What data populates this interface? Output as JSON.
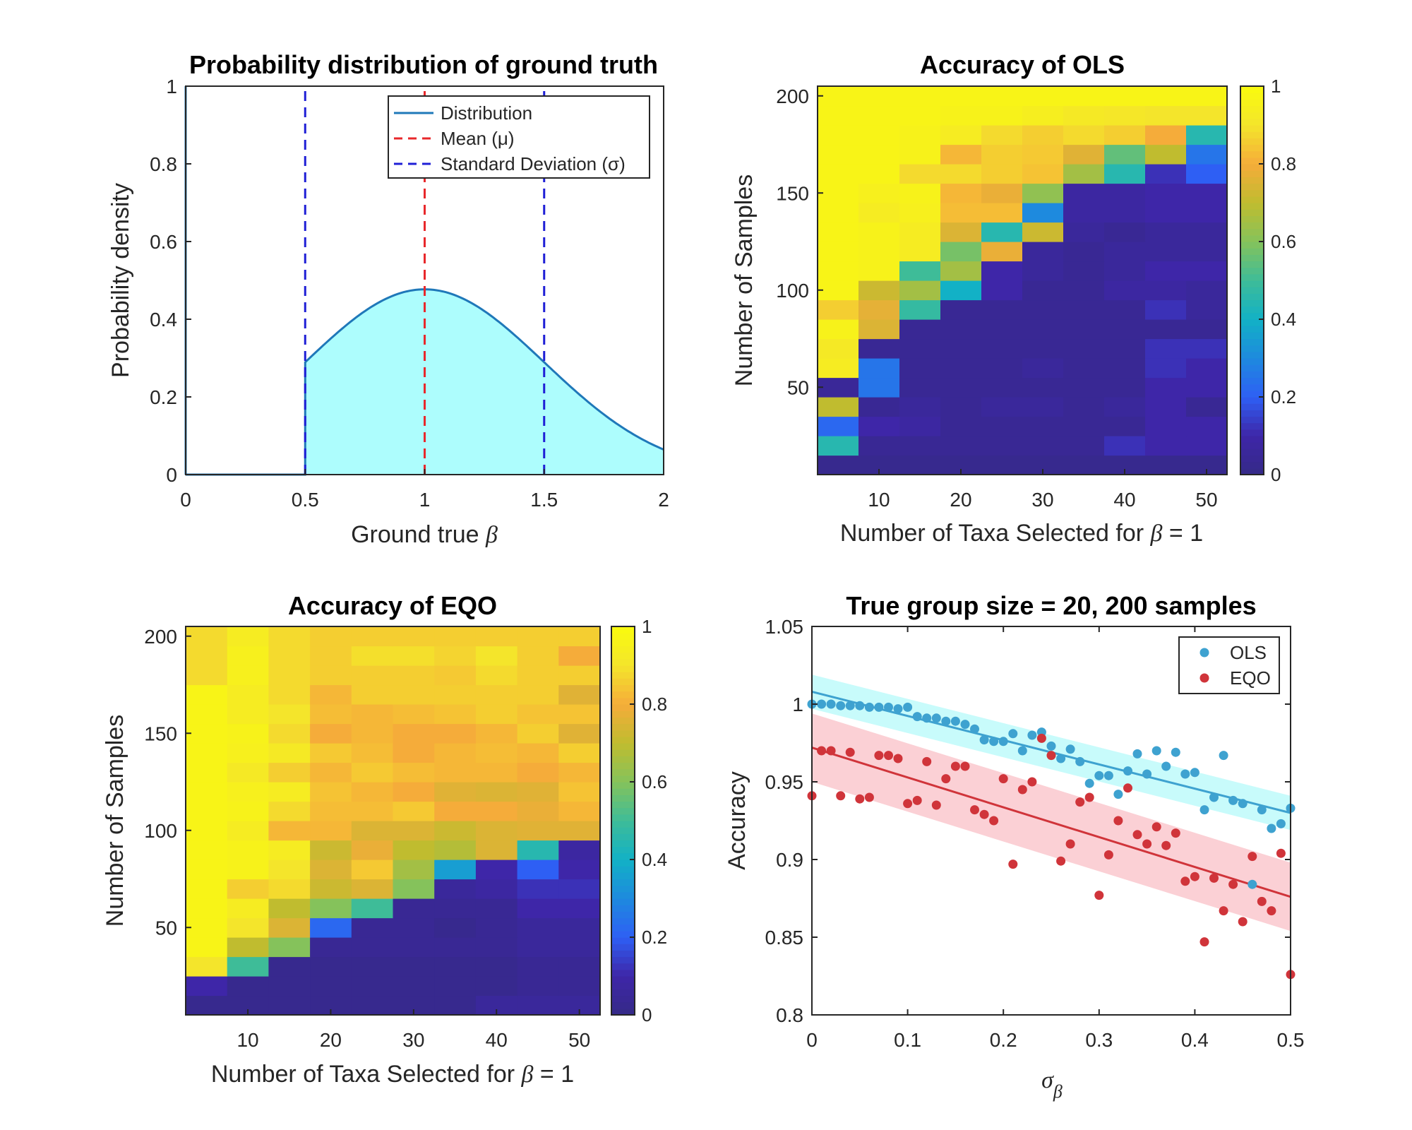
{
  "colormap": {
    "name": "parula",
    "stops": [
      "#352a87",
      "#3e26a8",
      "#2e5ff4",
      "#1e8ade",
      "#12b1c6",
      "#3ebc98",
      "#85c25b",
      "#c0bc2f",
      "#f5ac3a",
      "#f4e52b",
      "#f9fb0e"
    ]
  },
  "chart_data": [
    {
      "type": "area",
      "title": "Probability distribution of ground truth",
      "xlabel": "Ground true β",
      "ylabel": "Probability density",
      "xlim": [
        0,
        2
      ],
      "ylim": [
        0,
        1
      ],
      "xticks": [
        "0",
        "0.5",
        "1",
        "1.5",
        "2"
      ],
      "yticks": [
        "0",
        "0.2",
        "0.4",
        "0.6",
        "0.8",
        "1"
      ],
      "distribution": {
        "mean": 1,
        "sd": 0.5,
        "truncated_below": 0.5,
        "peak_density": 0.477
      },
      "mean_line": {
        "x": 1,
        "color": "#e8282b"
      },
      "sd_lines": {
        "x": [
          0.5,
          1.5
        ],
        "color": "#1f1fd6"
      },
      "curve_color": "#1f78b9",
      "fill_color": "#adfdfd",
      "legend": {
        "position": "top-right",
        "entries": [
          "Distribution",
          "Mean (μ)",
          "Standard Deviation (σ)"
        ]
      }
    },
    {
      "type": "heatmap",
      "title": "Accuracy of OLS",
      "xlabel": "Number of Taxa Selected for β = 1",
      "ylabel": "Number of Samples",
      "x": [
        5,
        10,
        15,
        20,
        25,
        30,
        35,
        40,
        45,
        50
      ],
      "y": [
        10,
        20,
        30,
        40,
        50,
        60,
        70,
        80,
        90,
        100,
        110,
        120,
        130,
        140,
        150,
        160,
        170,
        180,
        190,
        200
      ],
      "xticks": [
        "10",
        "20",
        "30",
        "40",
        "50"
      ],
      "yticks": [
        "50",
        "100",
        "150",
        "200"
      ],
      "colorbar": {
        "range": [
          0,
          1
        ],
        "ticks": [
          "0",
          "0.2",
          "0.4",
          "0.6",
          "0.8",
          "1"
        ]
      },
      "z": [
        [
          0.02,
          0.02,
          0.02,
          0.02,
          0.02,
          0.02,
          0.02,
          0.02,
          0.02,
          0.02
        ],
        [
          0.45,
          0.04,
          0.04,
          0.04,
          0.04,
          0.04,
          0.04,
          0.12,
          0.1,
          0.1
        ],
        [
          0.22,
          0.1,
          0.08,
          0.04,
          0.04,
          0.04,
          0.04,
          0.04,
          0.1,
          0.1
        ],
        [
          0.7,
          0.04,
          0.06,
          0.04,
          0.06,
          0.06,
          0.04,
          0.06,
          0.1,
          0.04
        ],
        [
          0.05,
          0.25,
          0.04,
          0.04,
          0.04,
          0.04,
          0.04,
          0.04,
          0.1,
          0.1
        ],
        [
          0.93,
          0.25,
          0.04,
          0.04,
          0.04,
          0.06,
          0.04,
          0.04,
          0.12,
          0.1
        ],
        [
          0.92,
          0.04,
          0.04,
          0.04,
          0.04,
          0.04,
          0.04,
          0.04,
          0.12,
          0.12
        ],
        [
          0.96,
          0.75,
          0.04,
          0.04,
          0.04,
          0.04,
          0.04,
          0.04,
          0.04,
          0.04
        ],
        [
          0.86,
          0.77,
          0.48,
          0.04,
          0.04,
          0.04,
          0.04,
          0.04,
          0.12,
          0.06
        ],
        [
          0.97,
          0.72,
          0.65,
          0.4,
          0.1,
          0.04,
          0.04,
          0.08,
          0.08,
          0.06
        ],
        [
          0.97,
          0.96,
          0.5,
          0.65,
          0.1,
          0.06,
          0.04,
          0.06,
          0.1,
          0.1
        ],
        [
          0.97,
          0.96,
          0.93,
          0.58,
          0.78,
          0.06,
          0.04,
          0.06,
          0.06,
          0.06
        ],
        [
          0.97,
          0.96,
          0.93,
          0.75,
          0.45,
          0.72,
          0.06,
          0.04,
          0.06,
          0.06
        ],
        [
          0.97,
          0.93,
          0.95,
          0.83,
          0.83,
          0.3,
          0.08,
          0.08,
          0.1,
          0.1
        ],
        [
          0.97,
          0.95,
          0.96,
          0.82,
          0.78,
          0.62,
          0.08,
          0.08,
          0.1,
          0.1
        ],
        [
          0.97,
          0.97,
          0.88,
          0.88,
          0.86,
          0.84,
          0.65,
          0.45,
          0.12,
          0.2
        ],
        [
          0.97,
          0.97,
          0.96,
          0.82,
          0.86,
          0.85,
          0.76,
          0.55,
          0.7,
          0.25
        ],
        [
          0.97,
          0.97,
          0.96,
          0.93,
          0.88,
          0.86,
          0.88,
          0.86,
          0.8,
          0.45
        ],
        [
          0.97,
          0.97,
          0.97,
          0.96,
          0.96,
          0.94,
          0.92,
          0.91,
          0.9,
          0.9
        ],
        [
          0.97,
          0.97,
          0.97,
          0.97,
          0.97,
          0.97,
          0.97,
          0.97,
          0.97,
          0.97
        ]
      ]
    },
    {
      "type": "heatmap",
      "title": "Accuracy of EQO",
      "xlabel": "Number of Taxa Selected for β = 1",
      "ylabel": "Number of Samples",
      "x": [
        5,
        10,
        15,
        20,
        25,
        30,
        35,
        40,
        45,
        50
      ],
      "y": [
        10,
        20,
        30,
        40,
        50,
        60,
        70,
        80,
        90,
        100,
        110,
        120,
        130,
        140,
        150,
        160,
        170,
        180,
        190,
        200
      ],
      "xticks": [
        "10",
        "20",
        "30",
        "40",
        "50"
      ],
      "yticks": [
        "50",
        "100",
        "150",
        "200"
      ],
      "colorbar": {
        "range": [
          0,
          1
        ],
        "ticks": [
          "0",
          "0.2",
          "0.4",
          "0.6",
          "0.8",
          "1"
        ]
      },
      "z": [
        [
          0.02,
          0.02,
          0.02,
          0.02,
          0.02,
          0.02,
          0.02,
          0.06,
          0.06,
          0.06
        ],
        [
          0.1,
          0.02,
          0.02,
          0.02,
          0.02,
          0.02,
          0.02,
          0.02,
          0.04,
          0.04
        ],
        [
          0.9,
          0.5,
          0.02,
          0.02,
          0.02,
          0.02,
          0.02,
          0.02,
          0.04,
          0.04
        ],
        [
          0.97,
          0.7,
          0.6,
          0.04,
          0.04,
          0.04,
          0.04,
          0.04,
          0.06,
          0.06
        ],
        [
          0.97,
          0.9,
          0.75,
          0.22,
          0.04,
          0.04,
          0.02,
          0.04,
          0.06,
          0.06
        ],
        [
          0.97,
          0.93,
          0.7,
          0.6,
          0.5,
          0.04,
          0.04,
          0.04,
          0.1,
          0.1
        ],
        [
          0.97,
          0.86,
          0.88,
          0.72,
          0.75,
          0.6,
          0.06,
          0.08,
          0.12,
          0.12
        ],
        [
          0.97,
          0.96,
          0.9,
          0.75,
          0.85,
          0.65,
          0.35,
          0.1,
          0.2,
          0.1
        ],
        [
          0.97,
          0.96,
          0.93,
          0.72,
          0.78,
          0.7,
          0.68,
          0.75,
          0.45,
          0.08
        ],
        [
          0.97,
          0.93,
          0.82,
          0.82,
          0.75,
          0.75,
          0.72,
          0.75,
          0.76,
          0.76
        ],
        [
          0.97,
          0.96,
          0.88,
          0.83,
          0.83,
          0.85,
          0.8,
          0.8,
          0.78,
          0.82
        ],
        [
          0.97,
          0.95,
          0.93,
          0.84,
          0.82,
          0.8,
          0.76,
          0.75,
          0.76,
          0.84
        ],
        [
          0.97,
          0.92,
          0.86,
          0.82,
          0.85,
          0.83,
          0.82,
          0.82,
          0.8,
          0.82
        ],
        [
          0.97,
          0.95,
          0.92,
          0.85,
          0.83,
          0.8,
          0.82,
          0.83,
          0.82,
          0.86
        ],
        [
          0.97,
          0.96,
          0.88,
          0.8,
          0.82,
          0.8,
          0.8,
          0.82,
          0.86,
          0.76
        ],
        [
          0.97,
          0.93,
          0.9,
          0.83,
          0.82,
          0.83,
          0.84,
          0.86,
          0.84,
          0.84
        ],
        [
          0.97,
          0.93,
          0.88,
          0.82,
          0.86,
          0.86,
          0.86,
          0.86,
          0.86,
          0.76
        ],
        [
          0.88,
          0.95,
          0.88,
          0.86,
          0.86,
          0.86,
          0.85,
          0.88,
          0.86,
          0.86
        ],
        [
          0.88,
          0.95,
          0.88,
          0.86,
          0.89,
          0.89,
          0.87,
          0.9,
          0.86,
          0.8
        ],
        [
          0.88,
          0.93,
          0.88,
          0.86,
          0.86,
          0.86,
          0.86,
          0.86,
          0.86,
          0.86
        ]
      ]
    },
    {
      "type": "scatter",
      "title": "True group size = 20, 200 samples",
      "xlabel": "σβ",
      "ylabel": "Accuracy",
      "xlim": [
        0,
        0.5
      ],
      "ylim": [
        0.8,
        1.05
      ],
      "xticks": [
        "0",
        "0.1",
        "0.2",
        "0.3",
        "0.4",
        "0.5"
      ],
      "yticks": [
        "0.8",
        "0.85",
        "0.9",
        "0.95",
        "1",
        "1.05"
      ],
      "legend": {
        "position": "top-right"
      },
      "series": [
        {
          "name": "OLS",
          "color": "#3ea2d0",
          "band_color": "#c8fbfb",
          "fit": {
            "x": [
              0,
              0.5
            ],
            "y": [
              1.008,
              0.93
            ],
            "band_halfwidth": 0.011
          },
          "points": [
            [
              0.0,
              1.0
            ],
            [
              0.01,
              1.0
            ],
            [
              0.02,
              1.0
            ],
            [
              0.03,
              0.999
            ],
            [
              0.04,
              0.999
            ],
            [
              0.05,
              0.999
            ],
            [
              0.06,
              0.998
            ],
            [
              0.07,
              0.998
            ],
            [
              0.08,
              0.998
            ],
            [
              0.09,
              0.997
            ],
            [
              0.1,
              0.998
            ],
            [
              0.11,
              0.992
            ],
            [
              0.12,
              0.991
            ],
            [
              0.13,
              0.991
            ],
            [
              0.14,
              0.989
            ],
            [
              0.15,
              0.989
            ],
            [
              0.16,
              0.987
            ],
            [
              0.17,
              0.984
            ],
            [
              0.18,
              0.977
            ],
            [
              0.19,
              0.976
            ],
            [
              0.2,
              0.976
            ],
            [
              0.21,
              0.981
            ],
            [
              0.22,
              0.97
            ],
            [
              0.23,
              0.98
            ],
            [
              0.24,
              0.982
            ],
            [
              0.25,
              0.973
            ],
            [
              0.26,
              0.965
            ],
            [
              0.27,
              0.971
            ],
            [
              0.28,
              0.963
            ],
            [
              0.29,
              0.949
            ],
            [
              0.3,
              0.954
            ],
            [
              0.31,
              0.954
            ],
            [
              0.32,
              0.942
            ],
            [
              0.33,
              0.957
            ],
            [
              0.34,
              0.968
            ],
            [
              0.35,
              0.955
            ],
            [
              0.36,
              0.97
            ],
            [
              0.37,
              0.96
            ],
            [
              0.38,
              0.969
            ],
            [
              0.39,
              0.955
            ],
            [
              0.4,
              0.956
            ],
            [
              0.41,
              0.932
            ],
            [
              0.42,
              0.94
            ],
            [
              0.43,
              0.967
            ],
            [
              0.44,
              0.938
            ],
            [
              0.45,
              0.936
            ],
            [
              0.46,
              0.884
            ],
            [
              0.47,
              0.932
            ],
            [
              0.48,
              0.92
            ],
            [
              0.49,
              0.923
            ],
            [
              0.5,
              0.933
            ]
          ]
        },
        {
          "name": "EQO",
          "color": "#d0343a",
          "band_color": "#fbd0d5",
          "fit": {
            "x": [
              0,
              0.5
            ],
            "y": [
              0.972,
              0.876
            ],
            "band_halfwidth": 0.022
          },
          "points": [
            [
              0.0,
              0.941
            ],
            [
              0.01,
              0.97
            ],
            [
              0.02,
              0.97
            ],
            [
              0.03,
              0.941
            ],
            [
              0.04,
              0.969
            ],
            [
              0.05,
              0.939
            ],
            [
              0.06,
              0.94
            ],
            [
              0.07,
              0.967
            ],
            [
              0.08,
              0.967
            ],
            [
              0.09,
              0.965
            ],
            [
              0.1,
              0.936
            ],
            [
              0.11,
              0.938
            ],
            [
              0.12,
              0.963
            ],
            [
              0.13,
              0.935
            ],
            [
              0.14,
              0.952
            ],
            [
              0.15,
              0.96
            ],
            [
              0.16,
              0.96
            ],
            [
              0.17,
              0.932
            ],
            [
              0.18,
              0.929
            ],
            [
              0.19,
              0.925
            ],
            [
              0.2,
              0.952
            ],
            [
              0.21,
              0.897
            ],
            [
              0.22,
              0.945
            ],
            [
              0.23,
              0.95
            ],
            [
              0.24,
              0.978
            ],
            [
              0.25,
              0.967
            ],
            [
              0.26,
              0.899
            ],
            [
              0.27,
              0.91
            ],
            [
              0.28,
              0.937
            ],
            [
              0.29,
              0.94
            ],
            [
              0.3,
              0.877
            ],
            [
              0.31,
              0.903
            ],
            [
              0.32,
              0.925
            ],
            [
              0.33,
              0.946
            ],
            [
              0.34,
              0.916
            ],
            [
              0.35,
              0.91
            ],
            [
              0.36,
              0.921
            ],
            [
              0.37,
              0.909
            ],
            [
              0.38,
              0.917
            ],
            [
              0.39,
              0.886
            ],
            [
              0.4,
              0.889
            ],
            [
              0.41,
              0.847
            ],
            [
              0.42,
              0.888
            ],
            [
              0.43,
              0.867
            ],
            [
              0.44,
              0.884
            ],
            [
              0.45,
              0.86
            ],
            [
              0.46,
              0.902
            ],
            [
              0.47,
              0.873
            ],
            [
              0.48,
              0.867
            ],
            [
              0.49,
              0.904
            ],
            [
              0.5,
              0.826
            ]
          ]
        }
      ]
    }
  ]
}
